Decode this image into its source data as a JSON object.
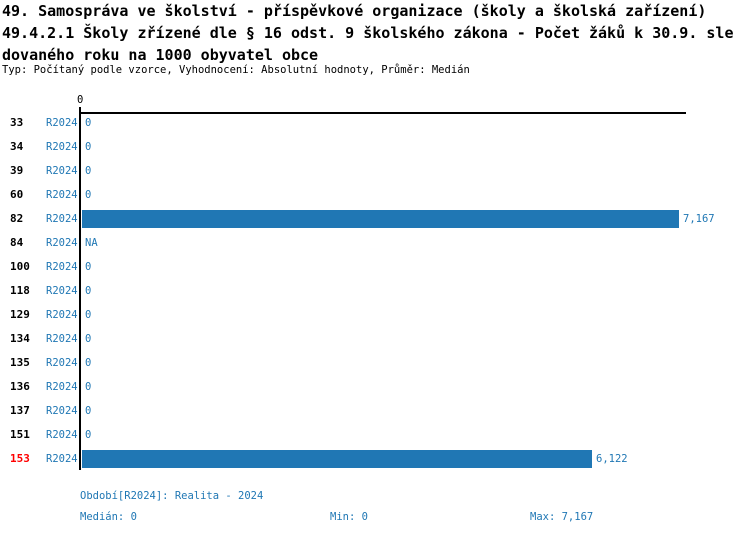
{
  "title": {
    "line1": "49. Samospráva ve školství - příspěvkové organizace (školy a školská zařízení)",
    "line2": "49.4.2.1 Školy zřízené dle § 16 odst. 9 školského zákona - Počet žáků k 30.9. sle",
    "line3": "dovaného roku na 1000 obyvatel obce",
    "subtitle": "Typ: Počítaný podle vzorce, Vyhodnocení: Absolutní hodnoty, Průměr: Medián"
  },
  "chart_data": {
    "type": "bar",
    "orientation": "horizontal",
    "series_name": "R2024",
    "categories": [
      "33",
      "34",
      "39",
      "60",
      "82",
      "84",
      "100",
      "118",
      "129",
      "134",
      "135",
      "136",
      "137",
      "151",
      "153"
    ],
    "values": [
      0,
      0,
      0,
      0,
      7167,
      null,
      0,
      0,
      0,
      0,
      0,
      0,
      0,
      0,
      6122
    ],
    "value_labels": [
      "0",
      "0",
      "0",
      "0",
      "7,167",
      "NA",
      "0",
      "0",
      "0",
      "0",
      "0",
      "0",
      "0",
      "0",
      "6,122"
    ],
    "highlighted_categories": [
      "153"
    ],
    "x_axis": {
      "ticks": [
        {
          "value": 0,
          "label": "0"
        }
      ],
      "range": [
        0,
        7250
      ],
      "grid": false
    },
    "period": "Realita - 2024",
    "stats": {
      "median": "0",
      "min": "0",
      "max": "7,167"
    }
  },
  "footer": {
    "period_line": "Období[R2024]: Realita - 2024",
    "median_label": "Medián: 0",
    "min_label": "Min: 0",
    "max_label": "Max: 7,167"
  },
  "colors": {
    "bar": "#2077b4",
    "blue_text": "#1f77b4",
    "highlight_red": "#ff0000",
    "axis": "#000000"
  }
}
